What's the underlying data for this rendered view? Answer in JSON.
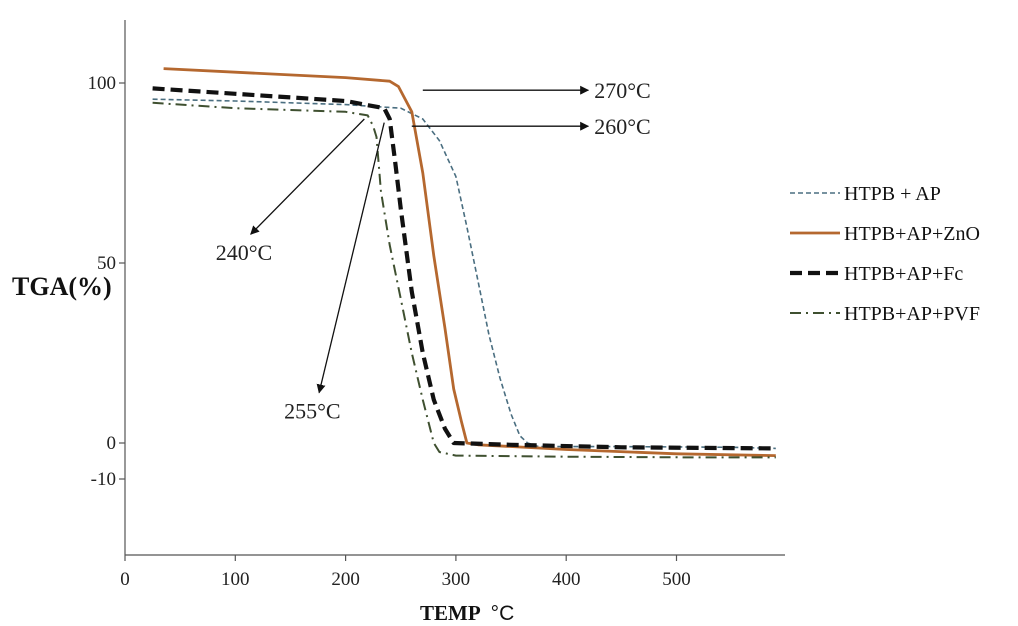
{
  "chart_data": {
    "type": "line",
    "xlabel": "TEMP",
    "xlabel_unit": "°C",
    "ylabel": "TGA(%)",
    "xlim": [
      0,
      590
    ],
    "ylim": [
      -10,
      118
    ],
    "x_ticks": [
      "0",
      "100",
      "200",
      "300",
      "400",
      "500"
    ],
    "y_ticks": [
      "100",
      "50",
      "0",
      "-10"
    ],
    "legend_position": "right",
    "series": [
      {
        "name": "HTPB + AP",
        "color": "#4a6e80",
        "style": "dashed-fine",
        "points": [
          [
            25,
            95.5
          ],
          [
            100,
            95
          ],
          [
            200,
            94
          ],
          [
            250,
            93
          ],
          [
            270,
            90
          ],
          [
            285,
            84
          ],
          [
            300,
            74
          ],
          [
            310,
            60
          ],
          [
            320,
            45
          ],
          [
            330,
            30
          ],
          [
            340,
            18
          ],
          [
            350,
            8
          ],
          [
            358,
            2
          ],
          [
            365,
            0
          ],
          [
            375,
            -1
          ],
          [
            450,
            -1
          ],
          [
            550,
            -1.2
          ],
          [
            590,
            -1.5
          ]
        ]
      },
      {
        "name": "HTPB+AP+ZnO",
        "color": "#b5682f",
        "style": "solid",
        "points": [
          [
            35,
            104
          ],
          [
            100,
            103
          ],
          [
            200,
            101.5
          ],
          [
            240,
            100.5
          ],
          [
            248,
            99
          ],
          [
            260,
            92
          ],
          [
            270,
            75
          ],
          [
            280,
            52
          ],
          [
            290,
            32
          ],
          [
            298,
            15
          ],
          [
            305,
            6
          ],
          [
            310,
            0
          ],
          [
            320,
            -0.5
          ],
          [
            400,
            -1.8
          ],
          [
            500,
            -3
          ],
          [
            590,
            -3.5
          ]
        ]
      },
      {
        "name": "HTPB+AP+Fc",
        "color": "#111111",
        "style": "dashed-bold",
        "points": [
          [
            25,
            98.5
          ],
          [
            100,
            97
          ],
          [
            200,
            95
          ],
          [
            235,
            93
          ],
          [
            240,
            90
          ],
          [
            245,
            78
          ],
          [
            250,
            65
          ],
          [
            260,
            42
          ],
          [
            270,
            25
          ],
          [
            280,
            12
          ],
          [
            290,
            4
          ],
          [
            298,
            0
          ],
          [
            350,
            -0.5
          ],
          [
            450,
            -1.2
          ],
          [
            590,
            -1.5
          ]
        ]
      },
      {
        "name": "HTPB+AP+PVF",
        "color": "#3f5030",
        "style": "dash-dot",
        "points": [
          [
            25,
            94.5
          ],
          [
            100,
            93
          ],
          [
            200,
            92
          ],
          [
            220,
            91
          ],
          [
            225,
            88
          ],
          [
            228,
            85
          ],
          [
            232,
            70
          ],
          [
            240,
            55
          ],
          [
            250,
            40
          ],
          [
            260,
            25
          ],
          [
            270,
            12
          ],
          [
            280,
            0
          ],
          [
            285,
            -2.5
          ],
          [
            300,
            -3.5
          ],
          [
            400,
            -3.8
          ],
          [
            520,
            -4
          ],
          [
            590,
            -4
          ]
        ]
      }
    ],
    "annotations": [
      {
        "text": "270°C",
        "kind": "arrow-right",
        "y": 98,
        "from_x": 270,
        "to_x": 420
      },
      {
        "text": "260°C",
        "kind": "arrow-right",
        "y": 88,
        "from_x": 260,
        "to_x": 420
      },
      {
        "text": "240°C",
        "kind": "arrow",
        "from": [
          217,
          90
        ],
        "to": [
          114,
          58
        ]
      },
      {
        "text": "255°C",
        "kind": "arrow",
        "from": [
          235,
          89
        ],
        "to": [
          176,
          14
        ]
      }
    ]
  }
}
